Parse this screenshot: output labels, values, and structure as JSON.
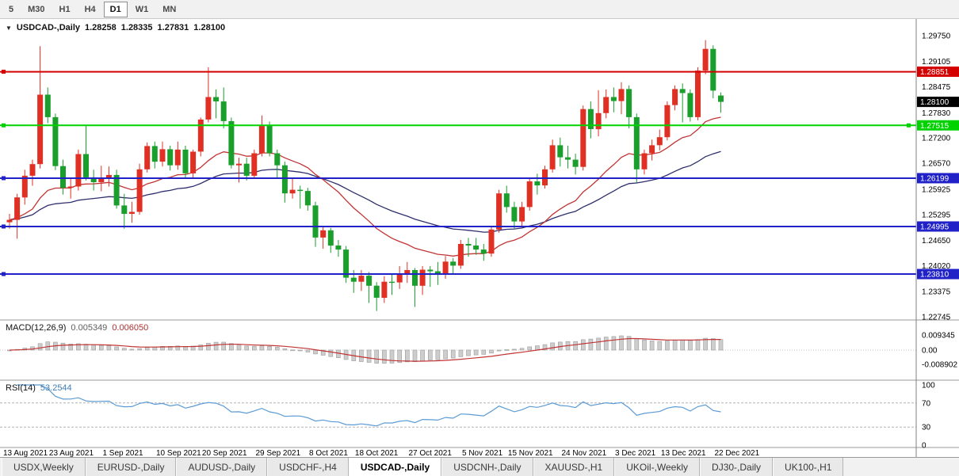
{
  "toolbar": {
    "timeframes": [
      {
        "label": "5",
        "active": false
      },
      {
        "label": "M30",
        "active": false
      },
      {
        "label": "H1",
        "active": false
      },
      {
        "label": "H4",
        "active": false
      },
      {
        "label": "D1",
        "active": true
      },
      {
        "label": "W1",
        "active": false
      },
      {
        "label": "MN",
        "active": false
      }
    ]
  },
  "chart": {
    "symbol_title": "USDCAD-,Daily",
    "open": "1.28258",
    "high": "1.28335",
    "low": "1.27831",
    "close": "1.28100"
  },
  "price_axis": {
    "ticks": [
      "1.29750",
      "1.29105",
      "1.28475",
      "1.27830",
      "1.27200",
      "1.26570",
      "1.25925",
      "1.25295",
      "1.24650",
      "1.24020",
      "1.23375",
      "1.22745"
    ],
    "current_price": "1.28100"
  },
  "hlines": [
    {
      "label": "1.28851",
      "price": 1.28851,
      "color": "#d40000",
      "handles": "left"
    },
    {
      "label": "1.27515",
      "price": 1.27515,
      "color": "#00d200",
      "handles": "both"
    },
    {
      "label": "1.26199",
      "price": 1.26199,
      "color": "#2121c8",
      "handles": "left"
    },
    {
      "label": "1.24995",
      "price": 1.24995,
      "color": "#2121c8",
      "handles": "left"
    },
    {
      "label": "1.23810",
      "price": 1.2381,
      "color": "#2121c8",
      "handles": "left"
    }
  ],
  "macd_panel": {
    "label": "MACD(12,26,9)",
    "value_main": "0.005349",
    "value_signal": "0.006050",
    "axis_labels": [
      "0.009345",
      "0.00",
      "-0.008902"
    ]
  },
  "rsi_panel": {
    "label": "RSI(14)",
    "value": "53.2544",
    "axis_labels": [
      "100",
      "70",
      "30",
      "0"
    ],
    "levels": [
      70,
      30
    ]
  },
  "chart_data": {
    "type": "candlestick",
    "title": "USDCAD-,Daily",
    "y_range": [
      1.22745,
      1.2975
    ],
    "x_labels": [
      "13 Aug 2021",
      "23 Aug 2021",
      "1 Sep 2021",
      "10 Sep 2021",
      "20 Sep 2021",
      "29 Sep 2021",
      "8 Oct 2021",
      "18 Oct 2021",
      "27 Oct 2021",
      "5 Nov 2021",
      "15 Nov 2021",
      "24 Nov 2021",
      "3 Dec 2021",
      "13 Dec 2021",
      "22 Dec 2021"
    ],
    "x_label_indices": [
      0,
      6,
      13,
      20,
      26,
      33,
      40,
      46,
      53,
      60,
      66,
      73,
      80,
      86,
      93
    ],
    "colors": {
      "up": "#e03024",
      "down": "#1a9e2c",
      "ma_fast": "#c23434",
      "ma_slow": "#2e2e6e",
      "macd_hist": "#cdcdcd",
      "macd_hist_edge": "#9b9b9b",
      "macd_signal": "#c23434",
      "rsi": "#5b9bd5"
    },
    "candles": [
      [
        1.251,
        1.2531,
        1.2494,
        1.2516
      ],
      [
        1.2516,
        1.2581,
        1.2469,
        1.2572
      ],
      [
        1.2572,
        1.2641,
        1.2554,
        1.2626
      ],
      [
        1.2626,
        1.2666,
        1.2601,
        1.2655
      ],
      [
        1.2655,
        1.2949,
        1.2644,
        1.2828
      ],
      [
        1.2828,
        1.2846,
        1.2757,
        1.2772
      ],
      [
        1.2772,
        1.2781,
        1.264,
        1.265
      ],
      [
        1.265,
        1.2666,
        1.2579,
        1.2596
      ],
      [
        1.2596,
        1.2621,
        1.2569,
        1.2599
      ],
      [
        1.2599,
        1.2691,
        1.2589,
        1.268
      ],
      [
        1.268,
        1.2751,
        1.2614,
        1.2622
      ],
      [
        1.2622,
        1.2641,
        1.2589,
        1.261
      ],
      [
        1.261,
        1.2651,
        1.2587,
        1.2621
      ],
      [
        1.2621,
        1.2649,
        1.2599,
        1.2628
      ],
      [
        1.2628,
        1.2641,
        1.2544,
        1.2552
      ],
      [
        1.2552,
        1.2581,
        1.2494,
        1.2531
      ],
      [
        1.2531,
        1.2561,
        1.2509,
        1.2536
      ],
      [
        1.2536,
        1.2656,
        1.2529,
        1.2642
      ],
      [
        1.2642,
        1.2709,
        1.2634,
        1.27
      ],
      [
        1.27,
        1.2711,
        1.2644,
        1.2661
      ],
      [
        1.2661,
        1.2711,
        1.2649,
        1.2692
      ],
      [
        1.2692,
        1.2701,
        1.2639,
        1.2652
      ],
      [
        1.2652,
        1.2711,
        1.2641,
        1.2691
      ],
      [
        1.2691,
        1.2701,
        1.2619,
        1.2632
      ],
      [
        1.2632,
        1.2691,
        1.2621,
        1.2686
      ],
      [
        1.2686,
        1.2771,
        1.2674,
        1.2766
      ],
      [
        1.2766,
        1.2896,
        1.2759,
        1.2822
      ],
      [
        1.2822,
        1.2841,
        1.2769,
        1.2811
      ],
      [
        1.2811,
        1.2846,
        1.2744,
        1.2762
      ],
      [
        1.2762,
        1.2771,
        1.2644,
        1.2652
      ],
      [
        1.2652,
        1.2671,
        1.2609,
        1.2656
      ],
      [
        1.2656,
        1.2671,
        1.2614,
        1.2626
      ],
      [
        1.2626,
        1.2691,
        1.2619,
        1.2682
      ],
      [
        1.2682,
        1.2776,
        1.2674,
        1.2752
      ],
      [
        1.2752,
        1.2761,
        1.2674,
        1.2682
      ],
      [
        1.2682,
        1.2691,
        1.2619,
        1.2652
      ],
      [
        1.2652,
        1.2661,
        1.2559,
        1.2582
      ],
      [
        1.2582,
        1.2621,
        1.2569,
        1.2591
      ],
      [
        1.2591,
        1.2601,
        1.2544,
        1.2588
      ],
      [
        1.2588,
        1.2596,
        1.2539,
        1.2552
      ],
      [
        1.2552,
        1.2561,
        1.2449,
        1.2472
      ],
      [
        1.2472,
        1.2501,
        1.2444,
        1.249
      ],
      [
        1.249,
        1.2496,
        1.2434,
        1.2452
      ],
      [
        1.2452,
        1.2466,
        1.2424,
        1.2442
      ],
      [
        1.2442,
        1.2451,
        1.2359,
        1.2372
      ],
      [
        1.2372,
        1.2391,
        1.2334,
        1.2362
      ],
      [
        1.2362,
        1.2391,
        1.2339,
        1.2377
      ],
      [
        1.2377,
        1.2386,
        1.2309,
        1.2352
      ],
      [
        1.2352,
        1.2361,
        1.2289,
        1.2322
      ],
      [
        1.2322,
        1.2376,
        1.2309,
        1.2362
      ],
      [
        1.2362,
        1.2381,
        1.2329,
        1.236
      ],
      [
        1.236,
        1.2401,
        1.2344,
        1.2382
      ],
      [
        1.2382,
        1.2411,
        1.2359,
        1.2391
      ],
      [
        1.2391,
        1.2396,
        1.2299,
        1.2352
      ],
      [
        1.2352,
        1.2401,
        1.2329,
        1.2392
      ],
      [
        1.2392,
        1.2401,
        1.2349,
        1.2388
      ],
      [
        1.2388,
        1.2411,
        1.2354,
        1.2381
      ],
      [
        1.2381,
        1.2426,
        1.2369,
        1.2412
      ],
      [
        1.2412,
        1.2421,
        1.2379,
        1.2402
      ],
      [
        1.2402,
        1.2466,
        1.2394,
        1.2456
      ],
      [
        1.2456,
        1.2471,
        1.2424,
        1.2452
      ],
      [
        1.2452,
        1.2471,
        1.2429,
        1.2442
      ],
      [
        1.2442,
        1.2456,
        1.2414,
        1.2432
      ],
      [
        1.2432,
        1.2501,
        1.2424,
        1.2492
      ],
      [
        1.2492,
        1.2591,
        1.2484,
        1.2582
      ],
      [
        1.2582,
        1.2601,
        1.2534,
        1.2548
      ],
      [
        1.2548,
        1.2561,
        1.2494,
        1.2512
      ],
      [
        1.2512,
        1.2561,
        1.2499,
        1.2548
      ],
      [
        1.2548,
        1.2621,
        1.2539,
        1.2612
      ],
      [
        1.2612,
        1.2631,
        1.2579,
        1.2602
      ],
      [
        1.2602,
        1.2651,
        1.2594,
        1.2642
      ],
      [
        1.2642,
        1.2716,
        1.2634,
        1.2702
      ],
      [
        1.2702,
        1.2721,
        1.2649,
        1.2672
      ],
      [
        1.2672,
        1.2701,
        1.2644,
        1.2666
      ],
      [
        1.2666,
        1.2681,
        1.2629,
        1.2648
      ],
      [
        1.2648,
        1.2801,
        1.2639,
        1.2792
      ],
      [
        1.2792,
        1.2811,
        1.2719,
        1.2742
      ],
      [
        1.2742,
        1.2839,
        1.2724,
        1.2782
      ],
      [
        1.2782,
        1.2841,
        1.2769,
        1.2822
      ],
      [
        1.2822,
        1.2846,
        1.2784,
        1.2812
      ],
      [
        1.2812,
        1.2859,
        1.2779,
        1.2842
      ],
      [
        1.2842,
        1.2851,
        1.2744,
        1.2772
      ],
      [
        1.2772,
        1.2781,
        1.2609,
        1.2642
      ],
      [
        1.2642,
        1.2691,
        1.2629,
        1.2682
      ],
      [
        1.2682,
        1.2716,
        1.2664,
        1.2702
      ],
      [
        1.2702,
        1.2741,
        1.2689,
        1.2722
      ],
      [
        1.2722,
        1.2811,
        1.2714,
        1.2802
      ],
      [
        1.2802,
        1.2851,
        1.2789,
        1.2842
      ],
      [
        1.2842,
        1.2856,
        1.2759,
        1.2832
      ],
      [
        1.2832,
        1.2841,
        1.2761,
        1.2772
      ],
      [
        1.2772,
        1.2896,
        1.2764,
        1.2888
      ],
      [
        1.2888,
        1.2964,
        1.2879,
        1.2942
      ],
      [
        1.2942,
        1.2951,
        1.2819,
        1.2838
      ],
      [
        1.28258,
        1.28335,
        1.27831,
        1.281
      ]
    ]
  },
  "tabs": [
    {
      "label": "USDX,Weekly",
      "active": false
    },
    {
      "label": "EURUSD-,Daily",
      "active": false
    },
    {
      "label": "AUDUSD-,Daily",
      "active": false
    },
    {
      "label": "USDCHF-,H4",
      "active": false
    },
    {
      "label": "USDCAD-,Daily",
      "active": true
    },
    {
      "label": "USDCNH-,Daily",
      "active": false
    },
    {
      "label": "XAUUSD-,H1",
      "active": false
    },
    {
      "label": "UKOil-,Weekly",
      "active": false
    },
    {
      "label": "DJ30-,Daily",
      "active": false
    },
    {
      "label": "UK100-,H1",
      "active": false
    }
  ]
}
